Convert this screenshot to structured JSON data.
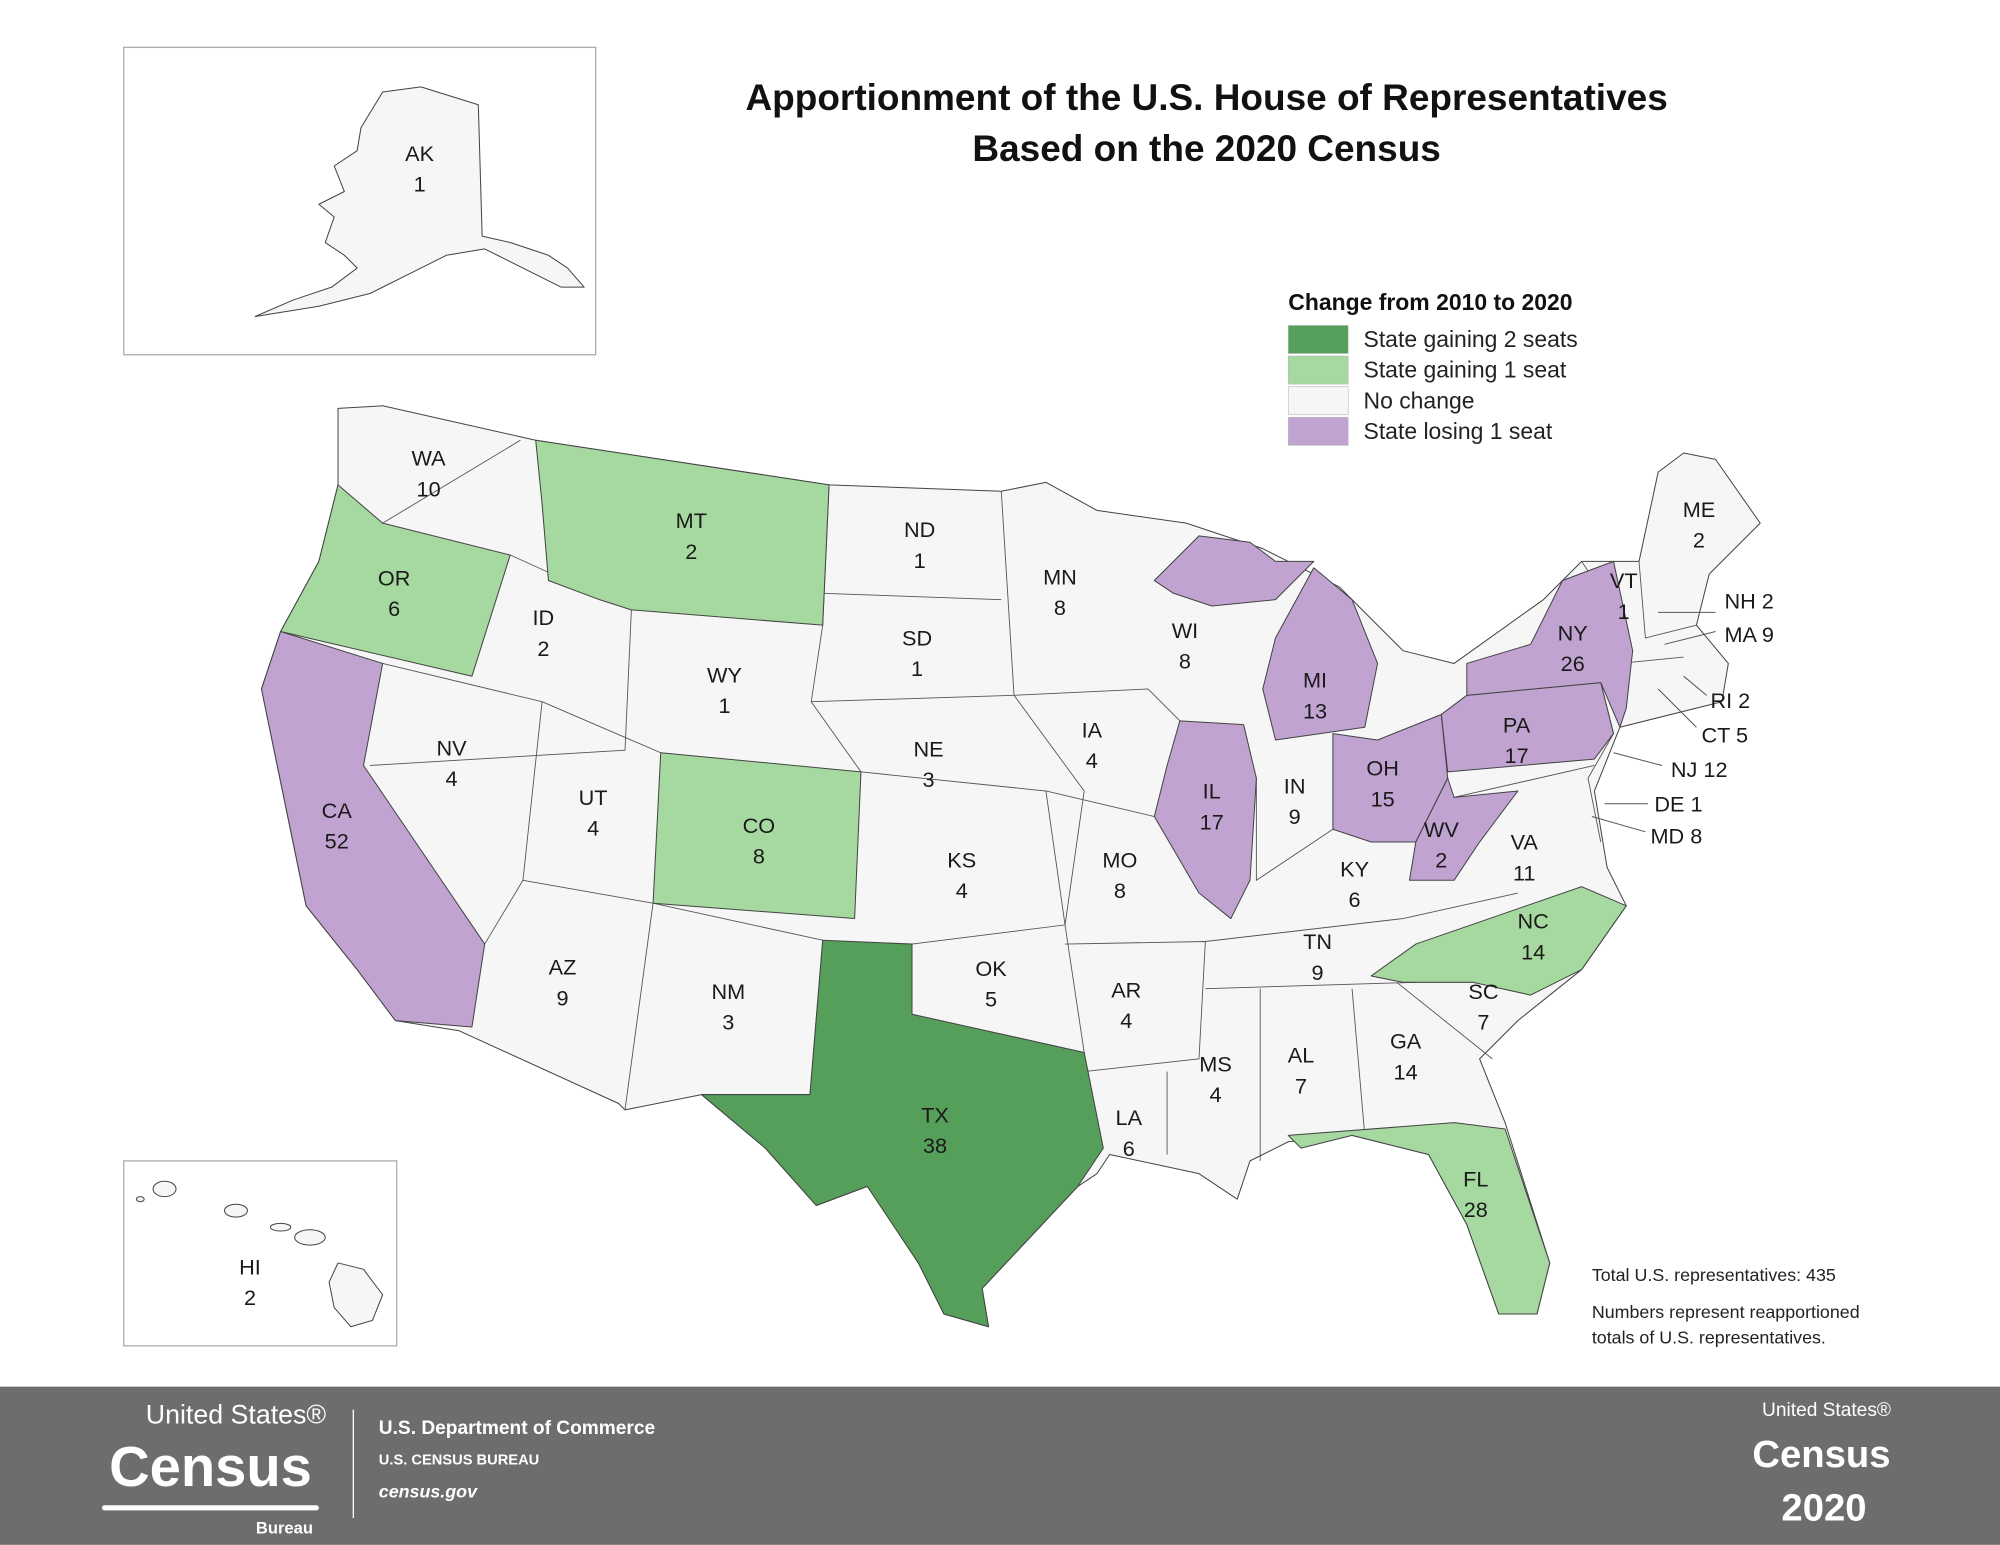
{
  "title_line1": "Apportionment of the U.S. House of Representatives",
  "title_line2": "Based on the 2020 Census",
  "legend": {
    "title": "Change from 2010 to 2020",
    "items": [
      {
        "key": "gain2",
        "label": "State gaining 2 seats",
        "color": "#559f5a"
      },
      {
        "key": "gain1",
        "label": "State gaining 1 seat",
        "color": "#a6d99f"
      },
      {
        "key": "none",
        "label": "No change",
        "color": "#f6f6f6"
      },
      {
        "key": "lose1",
        "label": "State losing 1 seat",
        "color": "#c0a3d0"
      }
    ]
  },
  "states": [
    {
      "abbr": "AK",
      "seats": "1",
      "change": "none"
    },
    {
      "abbr": "HI",
      "seats": "2",
      "change": "none"
    },
    {
      "abbr": "WA",
      "seats": "10",
      "change": "none"
    },
    {
      "abbr": "OR",
      "seats": "6",
      "change": "gain1"
    },
    {
      "abbr": "CA",
      "seats": "52",
      "change": "lose1"
    },
    {
      "abbr": "NV",
      "seats": "4",
      "change": "none"
    },
    {
      "abbr": "ID",
      "seats": "2",
      "change": "none"
    },
    {
      "abbr": "MT",
      "seats": "2",
      "change": "gain1"
    },
    {
      "abbr": "WY",
      "seats": "1",
      "change": "none"
    },
    {
      "abbr": "UT",
      "seats": "4",
      "change": "none"
    },
    {
      "abbr": "AZ",
      "seats": "9",
      "change": "none"
    },
    {
      "abbr": "CO",
      "seats": "8",
      "change": "gain1"
    },
    {
      "abbr": "NM",
      "seats": "3",
      "change": "none"
    },
    {
      "abbr": "ND",
      "seats": "1",
      "change": "none"
    },
    {
      "abbr": "SD",
      "seats": "1",
      "change": "none"
    },
    {
      "abbr": "NE",
      "seats": "3",
      "change": "none"
    },
    {
      "abbr": "KS",
      "seats": "4",
      "change": "none"
    },
    {
      "abbr": "OK",
      "seats": "5",
      "change": "none"
    },
    {
      "abbr": "TX",
      "seats": "38",
      "change": "gain2"
    },
    {
      "abbr": "MN",
      "seats": "8",
      "change": "none"
    },
    {
      "abbr": "IA",
      "seats": "4",
      "change": "none"
    },
    {
      "abbr": "MO",
      "seats": "8",
      "change": "none"
    },
    {
      "abbr": "AR",
      "seats": "4",
      "change": "none"
    },
    {
      "abbr": "LA",
      "seats": "6",
      "change": "none"
    },
    {
      "abbr": "WI",
      "seats": "8",
      "change": "none"
    },
    {
      "abbr": "IL",
      "seats": "17",
      "change": "lose1"
    },
    {
      "abbr": "MI",
      "seats": "13",
      "change": "lose1"
    },
    {
      "abbr": "IN",
      "seats": "9",
      "change": "none"
    },
    {
      "abbr": "OH",
      "seats": "15",
      "change": "lose1"
    },
    {
      "abbr": "KY",
      "seats": "6",
      "change": "none"
    },
    {
      "abbr": "TN",
      "seats": "9",
      "change": "none"
    },
    {
      "abbr": "MS",
      "seats": "4",
      "change": "none"
    },
    {
      "abbr": "AL",
      "seats": "7",
      "change": "none"
    },
    {
      "abbr": "GA",
      "seats": "14",
      "change": "none"
    },
    {
      "abbr": "FL",
      "seats": "28",
      "change": "gain1"
    },
    {
      "abbr": "SC",
      "seats": "7",
      "change": "none"
    },
    {
      "abbr": "NC",
      "seats": "14",
      "change": "gain1"
    },
    {
      "abbr": "VA",
      "seats": "11",
      "change": "none"
    },
    {
      "abbr": "WV",
      "seats": "2",
      "change": "lose1"
    },
    {
      "abbr": "PA",
      "seats": "17",
      "change": "lose1"
    },
    {
      "abbr": "NY",
      "seats": "26",
      "change": "lose1"
    },
    {
      "abbr": "VT",
      "seats": "1",
      "change": "none"
    },
    {
      "abbr": "ME",
      "seats": "2",
      "change": "none"
    },
    {
      "abbr": "NH",
      "seats": "2",
      "change": "none"
    },
    {
      "abbr": "MA",
      "seats": "9",
      "change": "none"
    },
    {
      "abbr": "RI",
      "seats": "2",
      "change": "none"
    },
    {
      "abbr": "CT",
      "seats": "5",
      "change": "none"
    },
    {
      "abbr": "NJ",
      "seats": "12",
      "change": "none"
    },
    {
      "abbr": "DE",
      "seats": "1",
      "change": "none"
    },
    {
      "abbr": "MD",
      "seats": "8",
      "change": "none"
    }
  ],
  "notes": {
    "total": "Total U.S. representatives: 435",
    "explain_line1": "Numbers represent reapportioned",
    "explain_line2": "totals of U.S. representatives."
  },
  "footer": {
    "logo_top": "United States®",
    "logo_main": "Census",
    "logo_sub": "Bureau",
    "dept": "U.S. Department of Commerce",
    "bureau": "U.S. CENSUS BUREAU",
    "url": "census.gov",
    "right_top": "United States®",
    "right_main": "Census",
    "right_year": "2020",
    "bg_color": "#6d6d6d"
  }
}
